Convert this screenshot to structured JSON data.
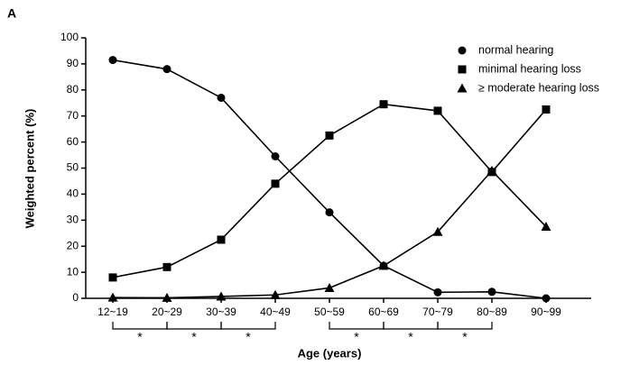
{
  "chart_data": {
    "type": "line",
    "panel_label": "A",
    "x_label": "Age (years)",
    "y_label": "Weighted percent (%)",
    "categories": [
      "12~19",
      "20~29",
      "30~39",
      "40~49",
      "50~59",
      "60~69",
      "70~79",
      "80~89",
      "90~99"
    ],
    "series": [
      {
        "name": "normal hearing",
        "color": "#000000",
        "marker": "circle",
        "values": [
          91.5,
          88,
          77,
          54.5,
          33,
          12.5,
          2.3,
          2.5,
          0
        ]
      },
      {
        "name": "minimal hearing loss",
        "color": "#000000",
        "marker": "square",
        "values": [
          8,
          12,
          22.5,
          44,
          62.5,
          74.5,
          72,
          48.5,
          72.5
        ]
      },
      {
        "name": "≥ moderate hearing loss",
        "color": "#000000",
        "marker": "triangle",
        "values": [
          0.3,
          0.2,
          0.7,
          1.3,
          4,
          12.5,
          25.5,
          49,
          27.5
        ]
      }
    ],
    "ylim": [
      0,
      100
    ],
    "yticks": [
      0,
      10,
      20,
      30,
      40,
      50,
      60,
      70,
      80,
      90,
      100
    ],
    "legend": "upper right",
    "annotations": [
      "*",
      "*",
      "*",
      "*",
      "*",
      "*"
    ]
  }
}
